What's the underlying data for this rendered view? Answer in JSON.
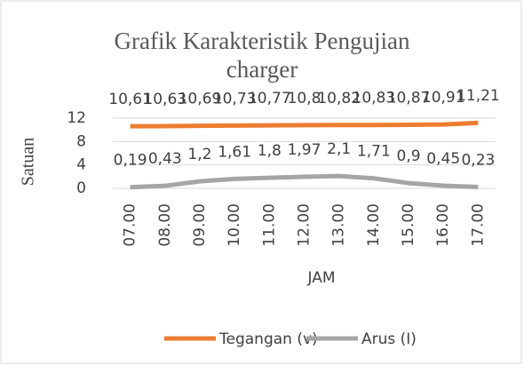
{
  "chart_data": {
    "type": "line",
    "title": "Grafik Karakteristik Pengujian charger",
    "x_label": "JAM",
    "y_label": "Satuan",
    "categories": [
      "07.00",
      "08.00",
      "09.00",
      "10.00",
      "11.00",
      "12.00",
      "13.00",
      "14.00",
      "15.00",
      "16.00",
      "17.00"
    ],
    "series": [
      {
        "name": "Tegangan (v)",
        "color": "#ed7d31",
        "values": [
          10.61,
          10.63,
          10.69,
          10.73,
          10.77,
          10.8,
          10.82,
          10.83,
          10.87,
          10.91,
          11.21
        ],
        "value_labels": [
          "10,61",
          "10,63",
          "10,69",
          "10,73",
          "10,77",
          "10,8",
          "10,82",
          "10,83",
          "10,87",
          "10,91",
          "11,21"
        ]
      },
      {
        "name": "Arus (I)",
        "color": "#a5a5a5",
        "values": [
          0.19,
          0.43,
          1.2,
          1.61,
          1.8,
          1.97,
          2.1,
          1.71,
          0.9,
          0.45,
          0.23
        ],
        "value_labels": [
          "0,19",
          "0,43",
          "1,2",
          "1,61",
          "1,8",
          "1,97",
          "2,1",
          "1,71",
          "0,9",
          "0,45",
          "0,23"
        ]
      }
    ],
    "ylim": [
      0,
      12
    ],
    "yticks": [
      0,
      4,
      8,
      12
    ],
    "grid": true,
    "legend": "bottom"
  }
}
